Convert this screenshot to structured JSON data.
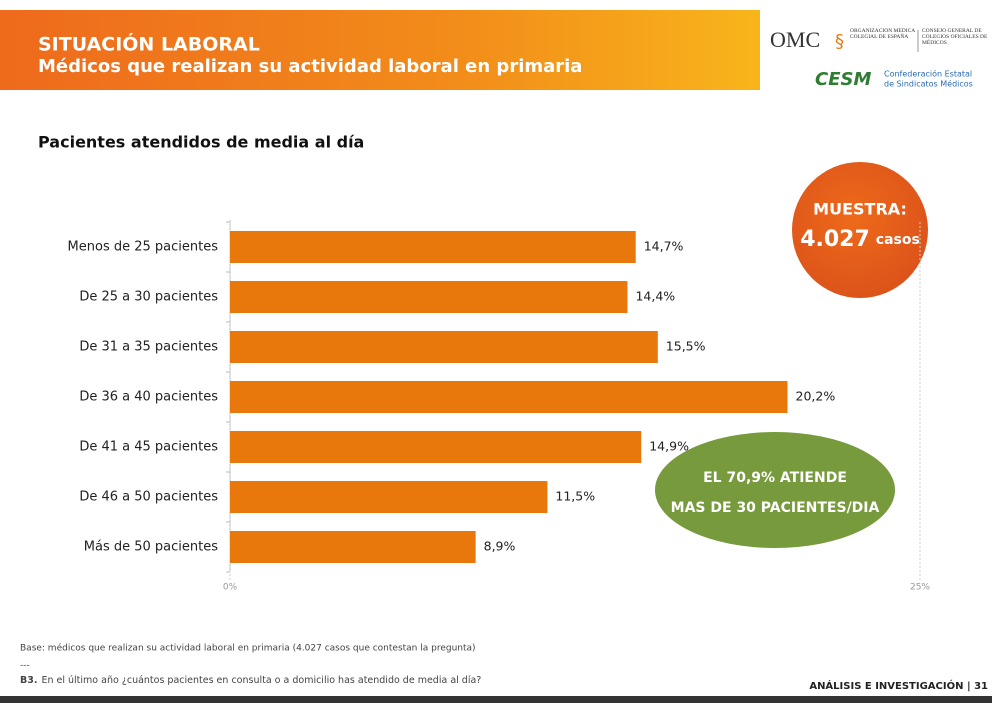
{
  "header": {
    "title": "SITUACIÓN LABORAL",
    "subtitle": "Médicos que realizan su actividad laboral en primaria",
    "logo_omc": "OMC",
    "logo_omc_org": "ORGANIZACIÓN MÉDICA COLEGIAL DE ESPAÑA",
    "logo_omc_council": "CONSEJO GENERAL DE COLEGIOS OFICIALES DE MÉDICOS",
    "logo_cesm": "CESM",
    "logo_cesm_line1": "Confederación Estatal",
    "logo_cesm_line2": "de Sindicatos Médicos"
  },
  "chart_data": {
    "type": "hbar",
    "title": "Pacientes atendidos de media al día",
    "categories": [
      "Menos de 25 pacientes",
      "De 25 a 30 pacientes",
      "De 31 a 35 pacientes",
      "De 36 a 40 pacientes",
      "De 41 a 45 pacientes",
      "De 46 a 50 pacientes",
      "Más de 50 pacientes"
    ],
    "values": [
      14.7,
      14.4,
      15.5,
      20.2,
      14.9,
      11.5,
      8.9
    ],
    "value_labels": [
      "14,7%",
      "14,4%",
      "15,5%",
      "20,2%",
      "14,9%",
      "11,5%",
      "8,9%"
    ],
    "color": "#e8780c",
    "xlim": [
      0,
      25
    ],
    "xticks": [
      {
        "value": 0,
        "label": "0%"
      },
      {
        "value": 25,
        "label": "25%"
      }
    ],
    "grid": true
  },
  "sample": {
    "label": "MUESTRA:",
    "number": "4.027",
    "unit": "casos"
  },
  "highlight": {
    "line1": "EL 70,9% ATIENDE",
    "line2": "MAS DE 30 PACIENTES/DIA"
  },
  "footer": {
    "base": "Base: médicos que realizan su actividad laboral en primaria (4.027 casos que contestan la pregunta)",
    "separator": "---",
    "question_code": "B3.",
    "question": "En el último año ¿cuántos pacientes en consulta o a domicilio has atendido de media al día?",
    "section": "ANÁLISIS E INVESTIGACIÓN | 31"
  }
}
